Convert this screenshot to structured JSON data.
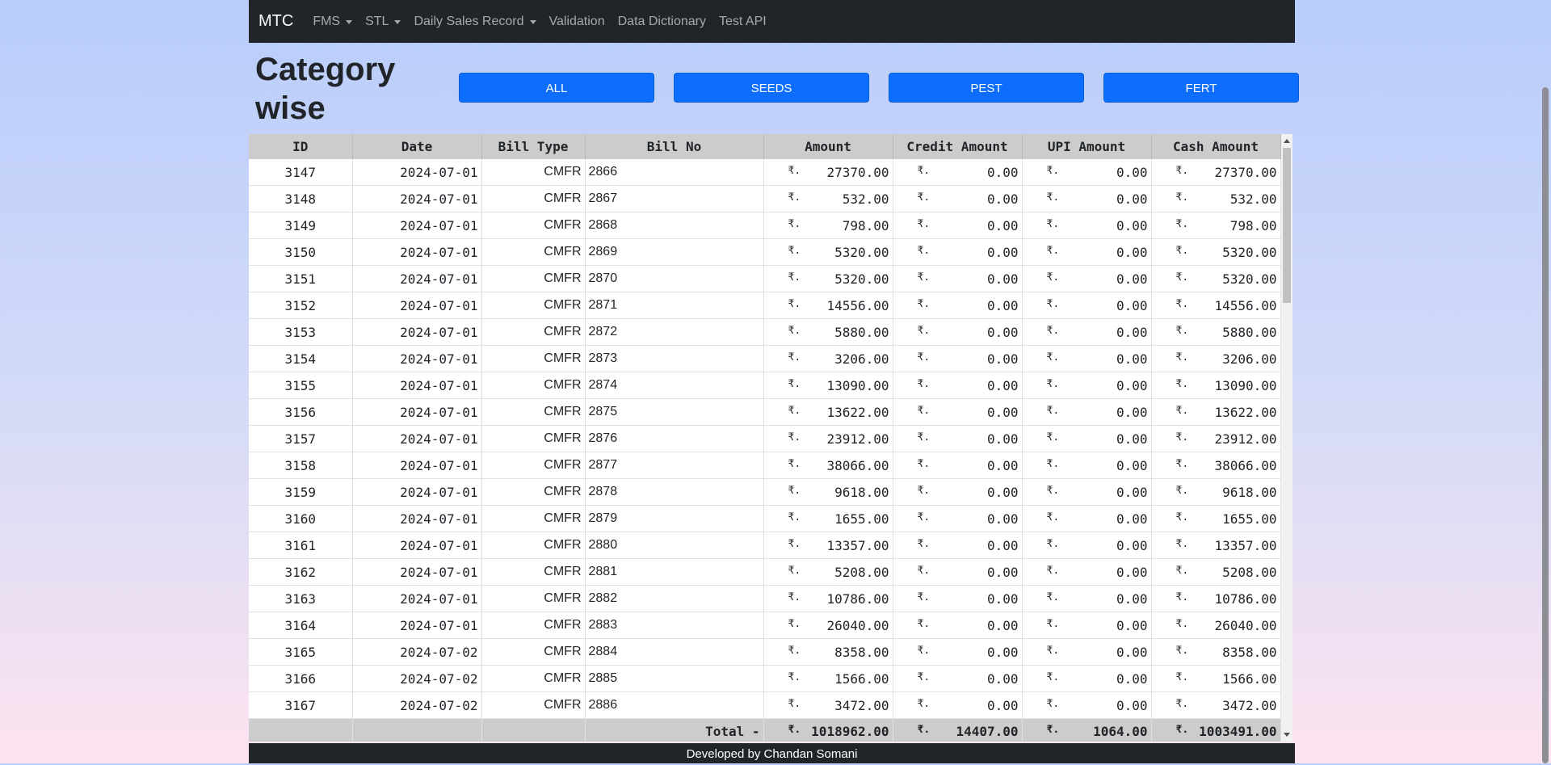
{
  "navbar": {
    "brand": "MTC",
    "items": [
      {
        "label": "FMS",
        "dropdown": true
      },
      {
        "label": "STL",
        "dropdown": true
      },
      {
        "label": "Daily Sales Record",
        "dropdown": true
      },
      {
        "label": "Validation",
        "dropdown": false
      },
      {
        "label": "Data Dictionary",
        "dropdown": false
      },
      {
        "label": "Test API",
        "dropdown": false
      }
    ]
  },
  "page": {
    "title": "Category wise",
    "category_buttons": [
      "ALL",
      "SEEDS",
      "PEST",
      "FERT"
    ]
  },
  "table": {
    "currency": "₹.",
    "headers": [
      "ID",
      "Date",
      "Bill Type",
      "Bill No",
      "Amount",
      "Credit Amount",
      "UPI Amount",
      "Cash Amount"
    ],
    "rows": [
      [
        "3147",
        "2024-07-01",
        "CMFR",
        "2866",
        "27370.00",
        "0.00",
        "0.00",
        "27370.00"
      ],
      [
        "3148",
        "2024-07-01",
        "CMFR",
        "2867",
        "532.00",
        "0.00",
        "0.00",
        "532.00"
      ],
      [
        "3149",
        "2024-07-01",
        "CMFR",
        "2868",
        "798.00",
        "0.00",
        "0.00",
        "798.00"
      ],
      [
        "3150",
        "2024-07-01",
        "CMFR",
        "2869",
        "5320.00",
        "0.00",
        "0.00",
        "5320.00"
      ],
      [
        "3151",
        "2024-07-01",
        "CMFR",
        "2870",
        "5320.00",
        "0.00",
        "0.00",
        "5320.00"
      ],
      [
        "3152",
        "2024-07-01",
        "CMFR",
        "2871",
        "14556.00",
        "0.00",
        "0.00",
        "14556.00"
      ],
      [
        "3153",
        "2024-07-01",
        "CMFR",
        "2872",
        "5880.00",
        "0.00",
        "0.00",
        "5880.00"
      ],
      [
        "3154",
        "2024-07-01",
        "CMFR",
        "2873",
        "3206.00",
        "0.00",
        "0.00",
        "3206.00"
      ],
      [
        "3155",
        "2024-07-01",
        "CMFR",
        "2874",
        "13090.00",
        "0.00",
        "0.00",
        "13090.00"
      ],
      [
        "3156",
        "2024-07-01",
        "CMFR",
        "2875",
        "13622.00",
        "0.00",
        "0.00",
        "13622.00"
      ],
      [
        "3157",
        "2024-07-01",
        "CMFR",
        "2876",
        "23912.00",
        "0.00",
        "0.00",
        "23912.00"
      ],
      [
        "3158",
        "2024-07-01",
        "CMFR",
        "2877",
        "38066.00",
        "0.00",
        "0.00",
        "38066.00"
      ],
      [
        "3159",
        "2024-07-01",
        "CMFR",
        "2878",
        "9618.00",
        "0.00",
        "0.00",
        "9618.00"
      ],
      [
        "3160",
        "2024-07-01",
        "CMFR",
        "2879",
        "1655.00",
        "0.00",
        "0.00",
        "1655.00"
      ],
      [
        "3161",
        "2024-07-01",
        "CMFR",
        "2880",
        "13357.00",
        "0.00",
        "0.00",
        "13357.00"
      ],
      [
        "3162",
        "2024-07-01",
        "CMFR",
        "2881",
        "5208.00",
        "0.00",
        "0.00",
        "5208.00"
      ],
      [
        "3163",
        "2024-07-01",
        "CMFR",
        "2882",
        "10786.00",
        "0.00",
        "0.00",
        "10786.00"
      ],
      [
        "3164",
        "2024-07-01",
        "CMFR",
        "2883",
        "26040.00",
        "0.00",
        "0.00",
        "26040.00"
      ],
      [
        "3165",
        "2024-07-02",
        "CMFR",
        "2884",
        "8358.00",
        "0.00",
        "0.00",
        "8358.00"
      ],
      [
        "3166",
        "2024-07-02",
        "CMFR",
        "2885",
        "1566.00",
        "0.00",
        "0.00",
        "1566.00"
      ],
      [
        "3167",
        "2024-07-02",
        "CMFR",
        "2886",
        "3472.00",
        "0.00",
        "0.00",
        "3472.00"
      ]
    ],
    "total": {
      "label": "Total -",
      "amount": "1018962.00",
      "credit": "14407.00",
      "upi": "1064.00",
      "cash": "1003491.00"
    }
  },
  "footer": {
    "text": "Developed by Chandan Somani"
  }
}
